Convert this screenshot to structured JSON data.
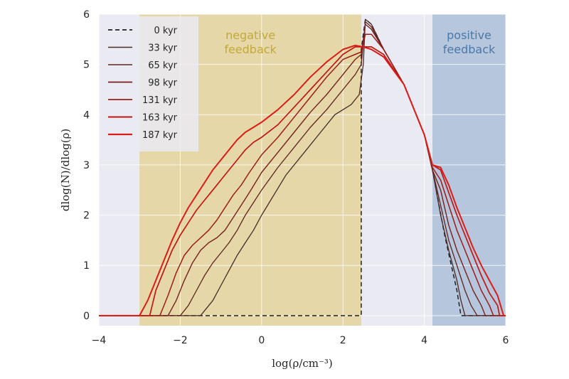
{
  "chart_data": {
    "type": "line",
    "xlabel": "log(ρ/cm⁻³)",
    "ylabel": "dlog(N)/dlog(ρ)",
    "xlim": [
      -4,
      6
    ],
    "ylim": [
      -0.2,
      6
    ],
    "xticks": [
      -4,
      -2,
      0,
      2,
      4,
      6
    ],
    "yticks": [
      0,
      1,
      2,
      3,
      4,
      5,
      6
    ],
    "xtick_labels": [
      "−4",
      "−2",
      "0",
      "2",
      "4",
      "6"
    ],
    "ytick_labels": [
      "0",
      "1",
      "2",
      "3",
      "4",
      "5",
      "6"
    ],
    "grid": true,
    "legend_position": "top-left",
    "regions": [
      {
        "label_lines": [
          "negative",
          "feedback"
        ],
        "x_start": -3.0,
        "x_end": 2.45,
        "color": "#e5d7a8",
        "text_color": "#c3a93a"
      },
      {
        "label_lines": [
          "positive",
          "feedback"
        ],
        "x_start": 4.2,
        "x_end": 6.0,
        "color": "#b6c6dc",
        "text_color": "#4a78a8"
      }
    ],
    "series": [
      {
        "name": "0 kyr",
        "color": "#222222",
        "dashed": true,
        "width": 1.5,
        "x": [
          -4,
          2.45,
          2.45,
          2.55,
          2.7,
          3.0,
          3.5,
          4.0,
          4.2,
          4.5,
          4.8,
          4.9,
          5.2,
          6
        ],
        "y": [
          0,
          0,
          5.3,
          5.9,
          5.8,
          5.3,
          4.6,
          3.6,
          2.9,
          1.6,
          0.5,
          0,
          0,
          0
        ]
      },
      {
        "name": "33 kyr",
        "color": "#4a2a26",
        "dashed": false,
        "width": 1.3,
        "x": [
          -4,
          -1.5,
          -1.4,
          -1.2,
          -1.0,
          -0.8,
          -0.6,
          -0.4,
          -0.2,
          0.0,
          0.3,
          0.6,
          1.0,
          1.4,
          1.8,
          2.2,
          2.4,
          2.5,
          2.55,
          2.7,
          3.0,
          3.5,
          4.0,
          4.2,
          4.4,
          4.6,
          4.8,
          4.9,
          5.0,
          6
        ],
        "y": [
          0,
          0,
          0.1,
          0.3,
          0.6,
          0.9,
          1.2,
          1.45,
          1.7,
          2.0,
          2.4,
          2.8,
          3.2,
          3.6,
          4.0,
          4.2,
          4.4,
          5.0,
          5.9,
          5.8,
          5.3,
          4.6,
          3.6,
          2.9,
          2.0,
          1.3,
          0.7,
          0.3,
          0,
          0
        ]
      },
      {
        "name": "65 kyr",
        "color": "#5e231e",
        "dashed": false,
        "width": 1.3,
        "x": [
          -4,
          -2.0,
          -1.8,
          -1.6,
          -1.4,
          -1.2,
          -1.0,
          -0.8,
          -0.6,
          -0.4,
          -0.2,
          0.0,
          0.4,
          0.8,
          1.2,
          1.6,
          2.0,
          2.3,
          2.45,
          2.55,
          2.7,
          3.0,
          3.5,
          4.0,
          4.2,
          4.4,
          4.6,
          4.8,
          5.0,
          5.15,
          5.3,
          6
        ],
        "y": [
          0,
          0,
          0.2,
          0.5,
          0.8,
          1.05,
          1.25,
          1.45,
          1.7,
          2.0,
          2.25,
          2.5,
          2.95,
          3.35,
          3.75,
          4.1,
          4.5,
          4.8,
          5.0,
          5.85,
          5.75,
          5.3,
          4.6,
          3.6,
          2.9,
          2.2,
          1.5,
          1.0,
          0.5,
          0.2,
          0,
          0
        ]
      },
      {
        "name": "98 kyr",
        "color": "#76201c",
        "dashed": false,
        "width": 1.4,
        "x": [
          -4,
          -2.3,
          -2.1,
          -1.9,
          -1.7,
          -1.5,
          -1.3,
          -1.1,
          -0.9,
          -0.7,
          -0.5,
          -0.3,
          0.0,
          0.4,
          0.8,
          1.2,
          1.6,
          2.0,
          2.3,
          2.45,
          2.55,
          2.7,
          3.0,
          3.5,
          4.0,
          4.2,
          4.4,
          4.6,
          4.8,
          5.0,
          5.2,
          5.4,
          5.5,
          6
        ],
        "y": [
          0,
          0,
          0.3,
          0.7,
          1.05,
          1.3,
          1.45,
          1.55,
          1.7,
          1.95,
          2.2,
          2.45,
          2.85,
          3.25,
          3.65,
          4.05,
          4.4,
          4.8,
          5.1,
          5.2,
          5.8,
          5.7,
          5.3,
          4.6,
          3.6,
          2.9,
          2.5,
          1.8,
          1.3,
          0.9,
          0.5,
          0.2,
          0,
          0
        ]
      },
      {
        "name": "131 kyr",
        "color": "#9b1c18",
        "dashed": false,
        "width": 1.5,
        "x": [
          -4,
          -2.5,
          -2.3,
          -2.1,
          -1.9,
          -1.7,
          -1.5,
          -1.3,
          -1.1,
          -0.9,
          -0.7,
          -0.5,
          -0.3,
          0.0,
          0.4,
          0.8,
          1.2,
          1.6,
          2.0,
          2.3,
          2.45,
          2.55,
          2.7,
          3.0,
          3.5,
          4.0,
          4.2,
          4.4,
          4.6,
          4.8,
          5.0,
          5.2,
          5.4,
          5.6,
          5.7,
          6
        ],
        "y": [
          0,
          0,
          0.4,
          0.85,
          1.2,
          1.4,
          1.55,
          1.7,
          1.9,
          2.15,
          2.4,
          2.6,
          2.85,
          3.2,
          3.55,
          3.95,
          4.35,
          4.75,
          5.1,
          5.2,
          5.25,
          5.6,
          5.6,
          5.3,
          4.6,
          3.6,
          2.95,
          2.7,
          2.2,
          1.7,
          1.3,
          0.9,
          0.5,
          0.2,
          0,
          0
        ]
      },
      {
        "name": "163 kyr",
        "color": "#c01814",
        "dashed": false,
        "width": 1.7,
        "x": [
          -4,
          -2.75,
          -2.6,
          -2.4,
          -2.2,
          -2.0,
          -1.8,
          -1.6,
          -1.4,
          -1.2,
          -1.0,
          -0.8,
          -0.6,
          -0.4,
          -0.2,
          0.0,
          0.4,
          0.8,
          1.2,
          1.6,
          2.0,
          2.3,
          2.5,
          2.7,
          3.0,
          3.5,
          4.0,
          4.2,
          4.4,
          4.6,
          4.8,
          5.0,
          5.2,
          5.4,
          5.6,
          5.8,
          5.85,
          6
        ],
        "y": [
          0,
          0,
          0.5,
          0.9,
          1.3,
          1.6,
          1.85,
          2.1,
          2.3,
          2.5,
          2.7,
          2.9,
          3.1,
          3.3,
          3.45,
          3.55,
          3.8,
          4.15,
          4.5,
          4.85,
          5.2,
          5.35,
          5.35,
          5.35,
          5.2,
          4.6,
          3.6,
          3.0,
          2.9,
          2.45,
          2.0,
          1.6,
          1.2,
          0.8,
          0.45,
          0.2,
          0,
          0
        ]
      },
      {
        "name": "187 kyr",
        "color": "#da1d17",
        "dashed": false,
        "width": 2.0,
        "x": [
          -4,
          -3.0,
          -2.8,
          -2.6,
          -2.4,
          -2.2,
          -2.0,
          -1.8,
          -1.6,
          -1.4,
          -1.2,
          -1.0,
          -0.8,
          -0.6,
          -0.4,
          -0.2,
          0.0,
          0.4,
          0.8,
          1.2,
          1.6,
          2.0,
          2.3,
          2.5,
          2.7,
          3.0,
          3.5,
          4.0,
          4.2,
          4.4,
          4.6,
          4.8,
          5.0,
          5.2,
          5.4,
          5.6,
          5.8,
          5.95,
          6
        ],
        "y": [
          0,
          0,
          0.3,
          0.7,
          1.1,
          1.5,
          1.85,
          2.15,
          2.4,
          2.65,
          2.9,
          3.1,
          3.3,
          3.5,
          3.65,
          3.75,
          3.85,
          4.1,
          4.4,
          4.75,
          5.05,
          5.3,
          5.38,
          5.35,
          5.3,
          5.15,
          4.6,
          3.6,
          3.0,
          2.95,
          2.6,
          2.15,
          1.75,
          1.35,
          1.0,
          0.7,
          0.4,
          0,
          0
        ]
      }
    ]
  }
}
